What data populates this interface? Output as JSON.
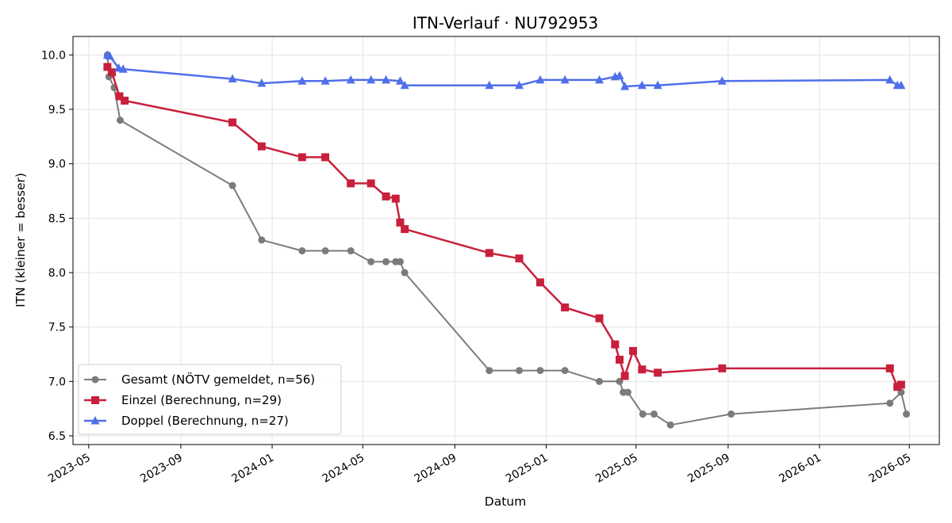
{
  "chart_data": {
    "type": "line",
    "title": "ITN-Verlauf · NU792953",
    "xlabel": "Datum",
    "ylabel": "ITN  (kleiner = besser)",
    "x_type": "date",
    "xlim": [
      "2023-04-10",
      "2026-06-10"
    ],
    "ylim": [
      6.42,
      10.17
    ],
    "x_ticks": [
      "2023-05-01",
      "2023-09-01",
      "2024-01-01",
      "2024-05-01",
      "2024-09-01",
      "2025-01-01",
      "2025-05-01",
      "2025-09-01",
      "2026-01-01",
      "2026-05-01"
    ],
    "x_tick_labels": [
      "2023-05",
      "2023-09",
      "2024-01",
      "2024-05",
      "2024-09",
      "2025-01",
      "2025-05",
      "2025-09",
      "2026-01",
      "2026-05"
    ],
    "y_ticks": [
      6.5,
      7.0,
      7.5,
      8.0,
      8.5,
      9.0,
      9.5,
      10.0
    ],
    "y_tick_labels": [
      "6.5",
      "7.0",
      "7.5",
      "8.0",
      "8.5",
      "9.0",
      "9.5",
      "10.0"
    ],
    "grid": true,
    "legend_position": "lower-left",
    "series": [
      {
        "name": "Gesamt (NÖTV gemeldet, n=56)",
        "color": "#444444",
        "marker": "circle",
        "points": [
          [
            "2023-05-26",
            10.0
          ],
          [
            "2023-05-28",
            9.8
          ],
          [
            "2023-06-04",
            9.7
          ],
          [
            "2023-06-12",
            9.4
          ],
          [
            "2023-11-09",
            8.8
          ],
          [
            "2023-12-18",
            8.3
          ],
          [
            "2024-02-10",
            8.2
          ],
          [
            "2024-03-12",
            8.2
          ],
          [
            "2024-04-15",
            8.2
          ],
          [
            "2024-05-12",
            8.1
          ],
          [
            "2024-06-01",
            8.1
          ],
          [
            "2024-06-14",
            8.1
          ],
          [
            "2024-06-20",
            8.1
          ],
          [
            "2024-06-26",
            8.0
          ],
          [
            "2024-10-17",
            7.1
          ],
          [
            "2024-11-26",
            7.1
          ],
          [
            "2024-12-24",
            7.1
          ],
          [
            "2025-01-26",
            7.1
          ],
          [
            "2025-03-13",
            7.0
          ],
          [
            "2025-04-09",
            7.0
          ],
          [
            "2025-04-14",
            6.9
          ],
          [
            "2025-04-20",
            6.9
          ],
          [
            "2025-05-10",
            6.7
          ],
          [
            "2025-05-25",
            6.7
          ],
          [
            "2025-06-16",
            6.6
          ],
          [
            "2025-09-05",
            6.7
          ],
          [
            "2026-04-05",
            6.8
          ],
          [
            "2026-04-20",
            6.9
          ],
          [
            "2026-04-27",
            6.7
          ]
        ]
      },
      {
        "name": "Einzel (Berechnung, n=29)",
        "color": "#c8203c",
        "marker": "square",
        "points": [
          [
            "2023-05-26",
            9.89
          ],
          [
            "2023-06-01",
            9.84
          ],
          [
            "2023-06-11",
            9.62
          ],
          [
            "2023-06-18",
            9.58
          ],
          [
            "2023-11-09",
            9.38
          ],
          [
            "2023-12-18",
            9.16
          ],
          [
            "2024-02-10",
            9.06
          ],
          [
            "2024-03-12",
            9.06
          ],
          [
            "2024-04-15",
            8.82
          ],
          [
            "2024-05-12",
            8.82
          ],
          [
            "2024-06-01",
            8.7
          ],
          [
            "2024-06-14",
            8.68
          ],
          [
            "2024-06-20",
            8.46
          ],
          [
            "2024-06-26",
            8.4
          ],
          [
            "2024-10-17",
            8.18
          ],
          [
            "2024-11-26",
            8.13
          ],
          [
            "2024-12-24",
            7.91
          ],
          [
            "2025-01-26",
            7.68
          ],
          [
            "2025-03-13",
            7.58
          ],
          [
            "2025-04-03",
            7.34
          ],
          [
            "2025-04-09",
            7.2
          ],
          [
            "2025-04-16",
            7.05
          ],
          [
            "2025-04-27",
            7.28
          ],
          [
            "2025-05-09",
            7.11
          ],
          [
            "2025-05-30",
            7.08
          ],
          [
            "2025-08-24",
            7.12
          ],
          [
            "2026-04-05",
            7.12
          ],
          [
            "2026-04-15",
            6.95
          ],
          [
            "2026-04-20",
            6.97
          ]
        ]
      },
      {
        "name": "Doppel (Berechnung, n=27)",
        "color": "#4f6fea",
        "marker": "triangle",
        "points": [
          [
            "2023-05-26",
            10.0
          ],
          [
            "2023-05-29",
            9.99
          ],
          [
            "2023-06-10",
            9.88
          ],
          [
            "2023-06-16",
            9.87
          ],
          [
            "2023-11-09",
            9.78
          ],
          [
            "2023-12-18",
            9.74
          ],
          [
            "2024-02-10",
            9.76
          ],
          [
            "2024-03-12",
            9.76
          ],
          [
            "2024-04-15",
            9.77
          ],
          [
            "2024-05-12",
            9.77
          ],
          [
            "2024-06-01",
            9.77
          ],
          [
            "2024-06-20",
            9.76
          ],
          [
            "2024-06-26",
            9.72
          ],
          [
            "2024-10-17",
            9.72
          ],
          [
            "2024-11-26",
            9.72
          ],
          [
            "2024-12-24",
            9.77
          ],
          [
            "2025-01-26",
            9.77
          ],
          [
            "2025-03-13",
            9.77
          ],
          [
            "2025-04-03",
            9.8
          ],
          [
            "2025-04-09",
            9.81
          ],
          [
            "2025-04-16",
            9.71
          ],
          [
            "2025-05-09",
            9.72
          ],
          [
            "2025-05-30",
            9.72
          ],
          [
            "2025-08-24",
            9.76
          ],
          [
            "2026-04-05",
            9.77
          ],
          [
            "2026-04-15",
            9.72
          ],
          [
            "2026-04-20",
            9.72
          ]
        ]
      }
    ]
  }
}
